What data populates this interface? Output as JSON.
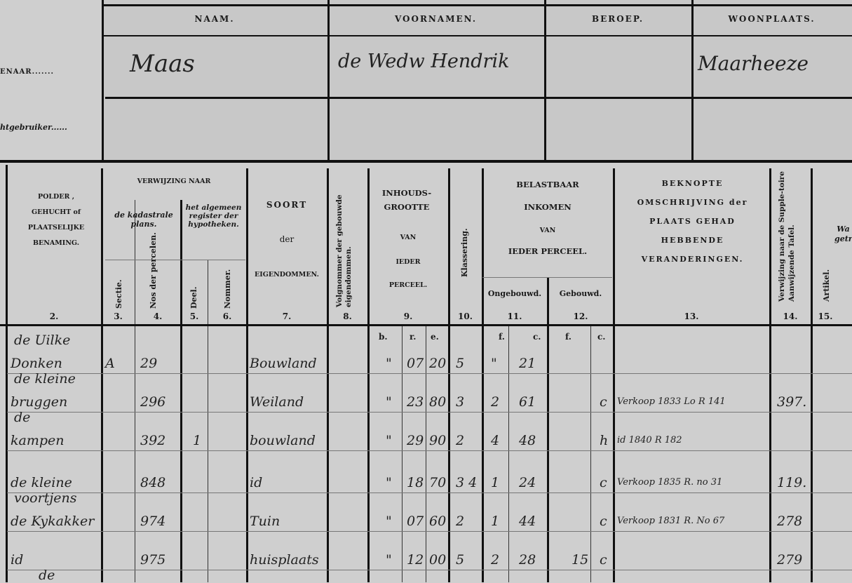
{
  "owner_block": {
    "labels": {
      "owner": "ENAAR.......",
      "user": "htgebruiker......"
    },
    "headers": {
      "name": "NAAM.",
      "first_names": "VOORNAMEN.",
      "profession": "BEROEP.",
      "residence": "WOONPLAATS."
    },
    "owner": {
      "name": "Maas",
      "first_names": "de Wedw Hendrik",
      "profession": "",
      "residence": "Maarheeze"
    }
  },
  "table_headers": {
    "polder": "POLDER , GEHUCHT of PLAATSELIJKE BENAMING.",
    "c2": "2.",
    "ref": "VERWIJZING NAAR",
    "kad": "de kadastrale plans.",
    "hyp": "het algemeen register der hypotheken.",
    "sectie": "Sectie.",
    "c3": "3.",
    "perc": "Nos der percelen.",
    "c4": "4.",
    "deel": "Deel.",
    "c5": "5.",
    "nommer": "Nommer.",
    "c6": "6.",
    "soort": "SOORT",
    "der": "der",
    "eigendommen": "EIGENDOMMEN.",
    "c7": "7.",
    "volg": "Volgnommer der gebouwde eigendommen.",
    "c8": "8.",
    "inhoud": "INHOUDS-GROOTTE",
    "van": "VAN",
    "ieder": "IEDER",
    "perceel": "PERCEEL.",
    "c9": "9.",
    "klass": "Klassering.",
    "c10": "10.",
    "bel": "BELASTBAAR",
    "ink": "INKOMEN",
    "van2": "VAN",
    "iedp": "IEDER PERCEEL.",
    "ong": "Ongebouwd.",
    "geb": "Gebouwd.",
    "c11": "11.",
    "c12": "12.",
    "besch": "BEKNOPTE OMSCHRIJVING der PLAATS GEHAD HEBBENDE VERANDERINGEN.",
    "c13": "13.",
    "verw": "Verwijzing naar de Supple-toire Aanwijzende Tafel.",
    "c14": "14.",
    "art": "Artikel.",
    "c15": "15.",
    "wa": "Wa getro",
    "b": "b.",
    "r": "r.",
    "e": "e.",
    "f": "f.",
    "c": "c.",
    "f2": "f.",
    "c2b": "c."
  },
  "rows": [
    {
      "polder": "de Uilke",
      "polder2": "Donken",
      "sectie": "A",
      "perceel": "29",
      "deel": "",
      "soort": "Bouwland",
      "b": "\"",
      "r": "07",
      "e": "20",
      "klasse": "5",
      "f": "\"",
      "c": "21",
      "gf": "",
      "gc": "",
      "change": "",
      "ref": ""
    },
    {
      "polder": "de kleine",
      "polder2": "bruggen",
      "sectie": "",
      "perceel": "296",
      "deel": "",
      "soort": "Weiland",
      "b": "\"",
      "r": "23",
      "e": "80",
      "klasse": "3",
      "f": "2",
      "c": "61",
      "gf": "",
      "gc": "c",
      "change": "Verkoop 1833 Lo R 141",
      "ref": "397."
    },
    {
      "polder": "de",
      "polder2": "kampen",
      "sectie": "",
      "perceel": "392",
      "deel": "1",
      "soort": "bouwland",
      "b": "\"",
      "r": "29",
      "e": "90",
      "klasse": "2",
      "f": "4",
      "c": "48",
      "gf": "",
      "gc": "h",
      "change": "id 1840 R 182",
      "ref": ""
    },
    {
      "polder": "",
      "polder2": "de kleine",
      "sectie": "",
      "perceel": "848",
      "deel": "",
      "soort": "id",
      "b": "\"",
      "r": "18",
      "e": "70",
      "klasse": "3 4",
      "f": "1",
      "c": "24",
      "gf": "",
      "gc": "c",
      "change": "Verkoop 1835 R. no 31",
      "ref": "119."
    },
    {
      "polder": "voortjens",
      "polder2": "de Kykakker",
      "sectie": "",
      "perceel": "974",
      "deel": "",
      "soort": "Tuin",
      "b": "\"",
      "r": "07",
      "e": "60",
      "klasse": "2",
      "f": "1",
      "c": "44",
      "gf": "",
      "gc": "c",
      "change": "Verkoop 1831 R. No 67",
      "ref": "278"
    },
    {
      "polder": "",
      "polder2": "id",
      "sectie": "",
      "perceel": "975",
      "deel": "",
      "soort": "huisplaats",
      "b": "\"",
      "r": "12",
      "e": "00",
      "klasse": "5",
      "f": "2",
      "c": "28",
      "gf": "15",
      "gc": "c",
      "change": "",
      "ref": "279"
    }
  ],
  "trailing": "de"
}
